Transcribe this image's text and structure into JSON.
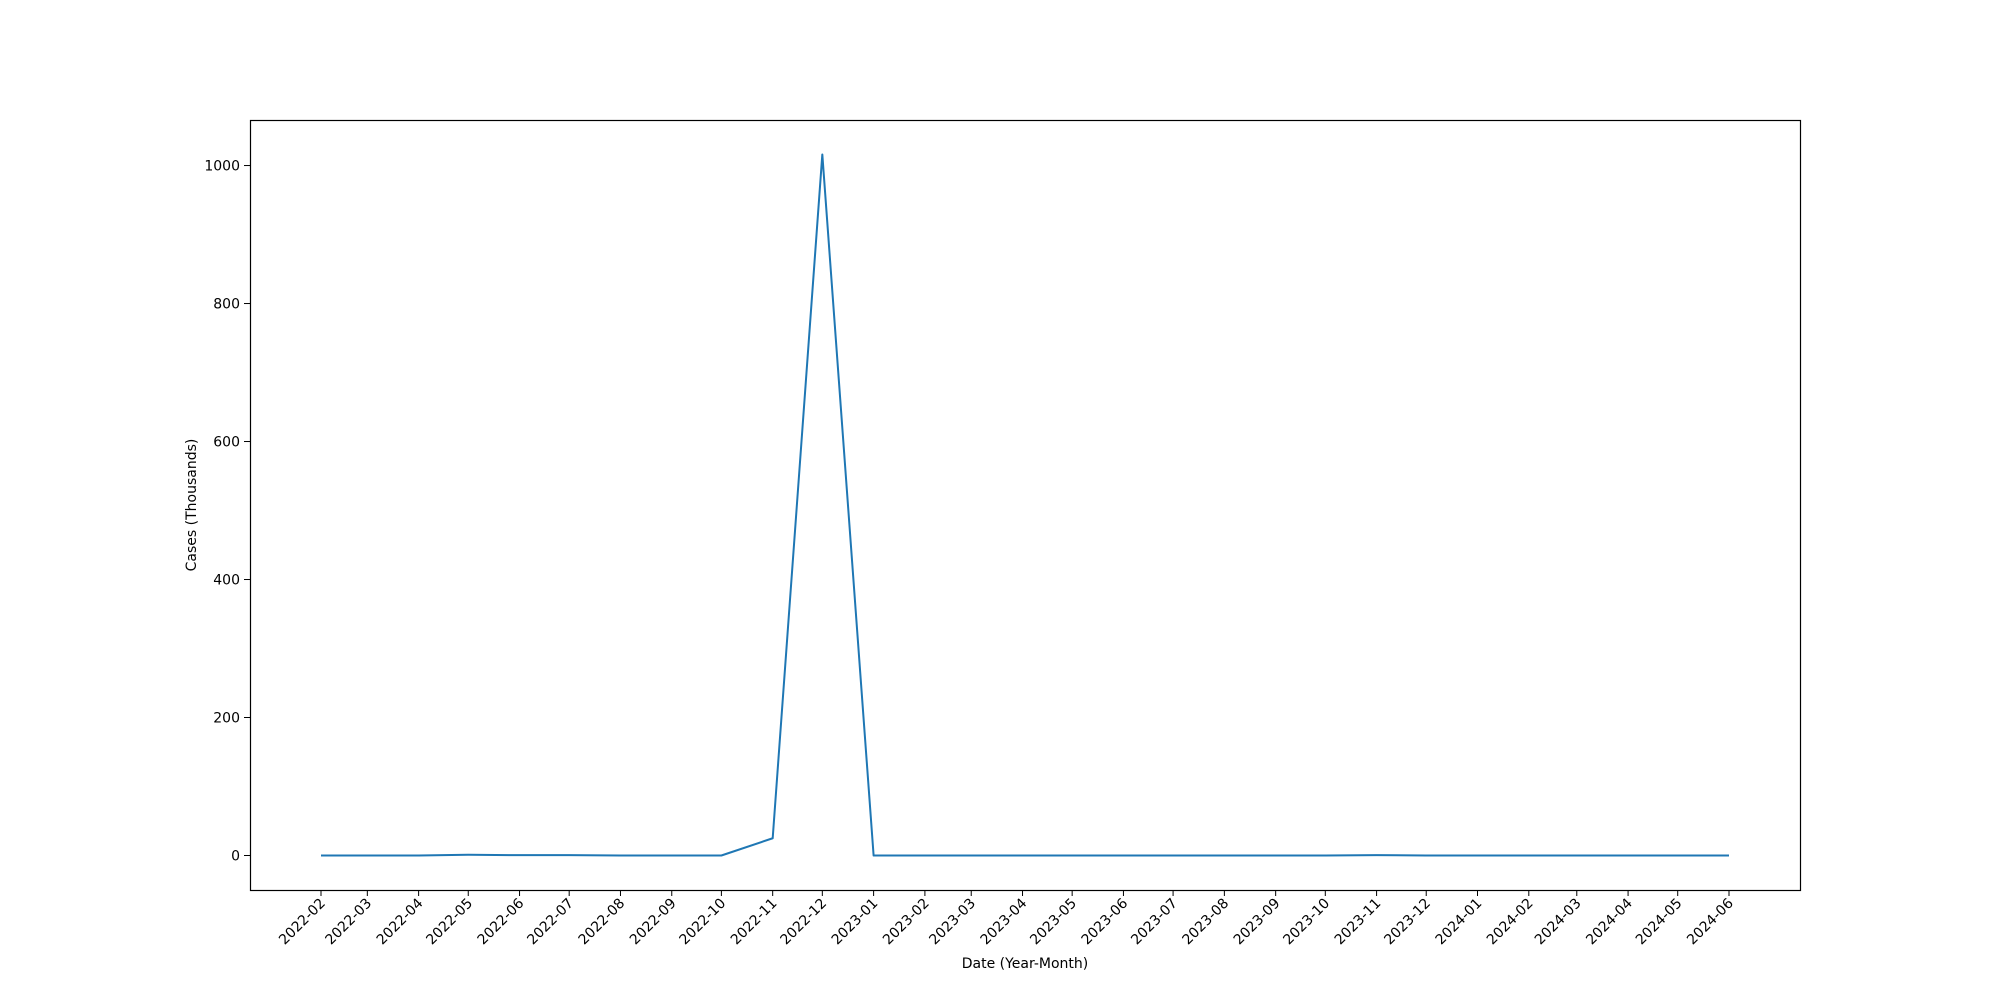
{
  "chart_data": {
    "type": "line",
    "title": "",
    "xlabel": "Date (Year-Month)",
    "ylabel": "Cases (Thousands)",
    "categories": [
      "2022-02",
      "2022-03",
      "2022-04",
      "2022-05",
      "2022-06",
      "2022-07",
      "2022-08",
      "2022-09",
      "2022-10",
      "2022-11",
      "2022-12",
      "2023-01",
      "2023-02",
      "2023-03",
      "2023-04",
      "2023-05",
      "2023-06",
      "2023-07",
      "2023-08",
      "2023-09",
      "2023-10",
      "2023-11",
      "2023-12",
      "2024-01",
      "2024-02",
      "2024-03",
      "2024-04",
      "2024-05",
      "2024-06"
    ],
    "x_dates": [
      "2022-02-01",
      "2022-03-01",
      "2022-04-01",
      "2022-05-01",
      "2022-06-01",
      "2022-07-01",
      "2022-08-01",
      "2022-09-01",
      "2022-10-01",
      "2022-11-01",
      "2022-12-01",
      "2023-01-01",
      "2023-02-01",
      "2023-03-01",
      "2023-04-01",
      "2023-05-01",
      "2023-06-01",
      "2023-07-01",
      "2023-08-01",
      "2023-09-01",
      "2023-10-01",
      "2023-11-01",
      "2023-12-01",
      "2024-01-01",
      "2024-02-01",
      "2024-03-01",
      "2024-04-01",
      "2024-05-01",
      "2024-06-01"
    ],
    "values": [
      0,
      0,
      0,
      1,
      0.5,
      0.5,
      0,
      0,
      0,
      25,
      1016,
      0,
      0,
      0,
      0,
      0,
      0,
      0,
      0,
      0,
      0,
      0.5,
      0,
      0,
      0,
      0,
      0,
      0,
      0
    ],
    "ylim": [
      -50,
      1066
    ],
    "yticks": [
      0,
      200,
      400,
      600,
      800,
      1000
    ],
    "grid": false,
    "line_color": "#1f77b4"
  }
}
